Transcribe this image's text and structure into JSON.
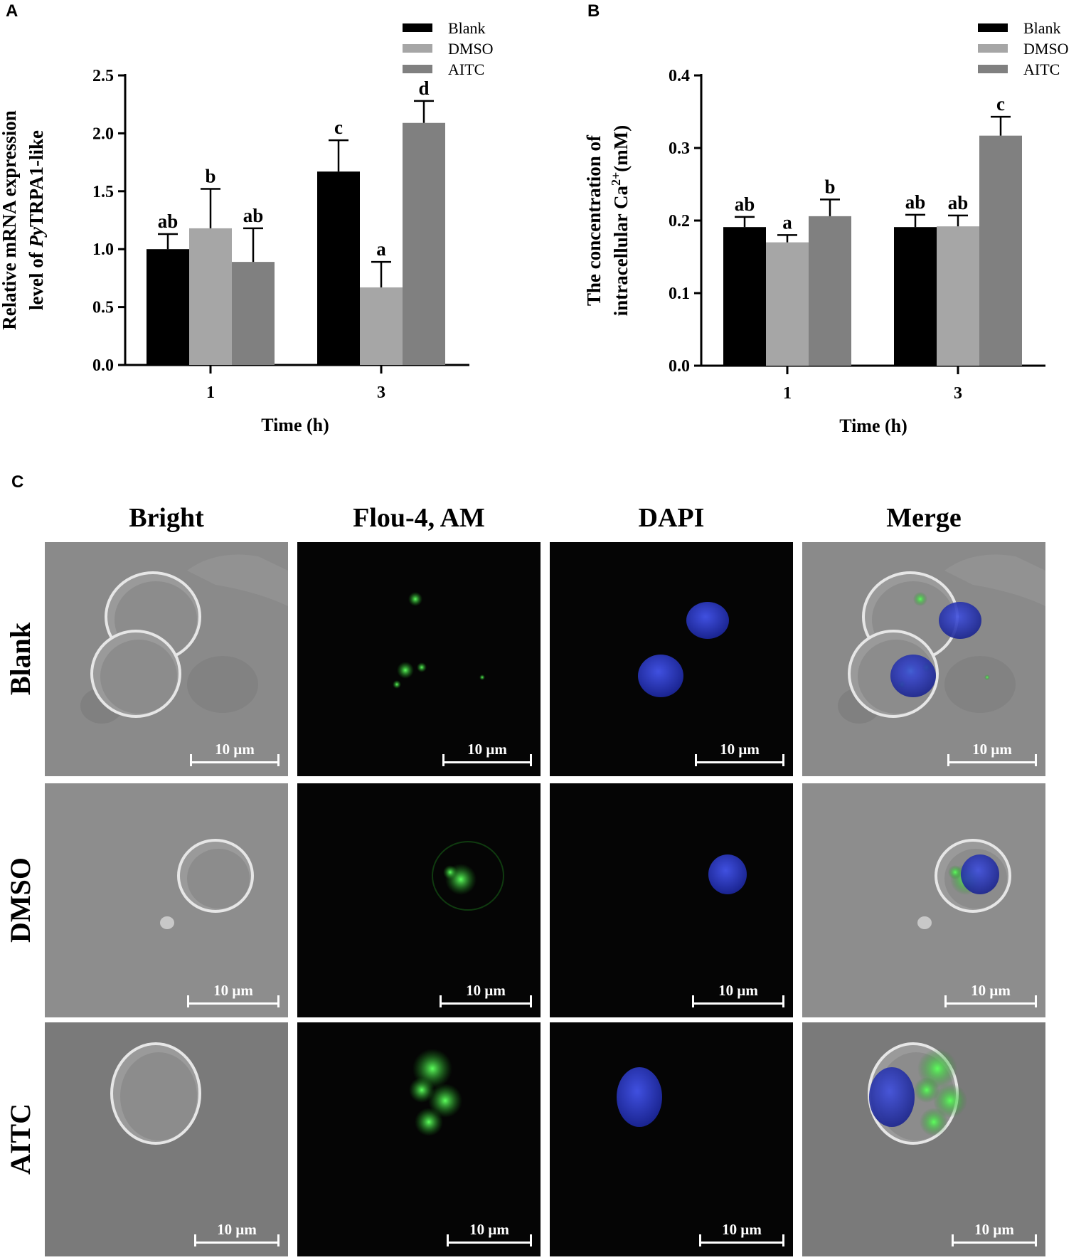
{
  "panels": {
    "a": "A",
    "b": "B",
    "c": "C"
  },
  "chart_data": [
    {
      "type": "bar",
      "panel": "A",
      "categories": [
        "1",
        "3"
      ],
      "xlabel": "Time (h)",
      "ylabel_line1": "Relative mRNA expression",
      "ylabel_line2_pre": "level of ",
      "ylabel_line2_it": "Py",
      "ylabel_line2_post": "TRPA1-like",
      "ylim": [
        0,
        2.5
      ],
      "yticks": [
        "0.0",
        "0.5",
        "1.0",
        "1.5",
        "2.0",
        "2.5"
      ],
      "legend_position": "top-right",
      "series": [
        {
          "name": "Blank",
          "color": "#000000",
          "values": [
            1.0,
            1.67
          ],
          "errors": [
            0.13,
            0.27
          ],
          "letters": [
            "ab",
            "c"
          ]
        },
        {
          "name": "DMSO",
          "color": "#a6a6a6",
          "values": [
            1.18,
            0.67
          ],
          "errors": [
            0.34,
            0.22
          ],
          "letters": [
            "b",
            "a"
          ]
        },
        {
          "name": "AITC",
          "color": "#808080",
          "values": [
            0.89,
            2.09
          ],
          "errors": [
            0.29,
            0.19
          ],
          "letters": [
            "ab",
            "d"
          ]
        }
      ]
    },
    {
      "type": "bar",
      "panel": "B",
      "categories": [
        "1",
        "3"
      ],
      "xlabel": "Time (h)",
      "ylabel_line1": "The concentration of",
      "ylabel_line2_pre": "intracellular Ca",
      "ylabel_line2_sup": "2+",
      "ylabel_line2_post": "(mM)",
      "ylim": [
        0,
        0.4
      ],
      "yticks": [
        "0.0",
        "0.1",
        "0.2",
        "0.3",
        "0.4"
      ],
      "legend_position": "top-right",
      "series": [
        {
          "name": "Blank",
          "color": "#000000",
          "values": [
            0.191,
            0.191
          ],
          "errors": [
            0.014,
            0.017
          ],
          "letters": [
            "ab",
            "ab"
          ]
        },
        {
          "name": "DMSO",
          "color": "#a6a6a6",
          "values": [
            0.17,
            0.192
          ],
          "errors": [
            0.01,
            0.015
          ],
          "letters": [
            "a",
            "ab"
          ]
        },
        {
          "name": "AITC",
          "color": "#808080",
          "values": [
            0.206,
            0.317
          ],
          "errors": [
            0.023,
            0.026
          ],
          "letters": [
            "b",
            "c"
          ]
        }
      ]
    }
  ],
  "microscopy": {
    "columns": [
      "Bright",
      "Flou-4, AM",
      "DAPI",
      "Merge"
    ],
    "rows": [
      "Blank",
      "DMSO",
      "AITC"
    ],
    "scale_bar": "10 μm"
  }
}
